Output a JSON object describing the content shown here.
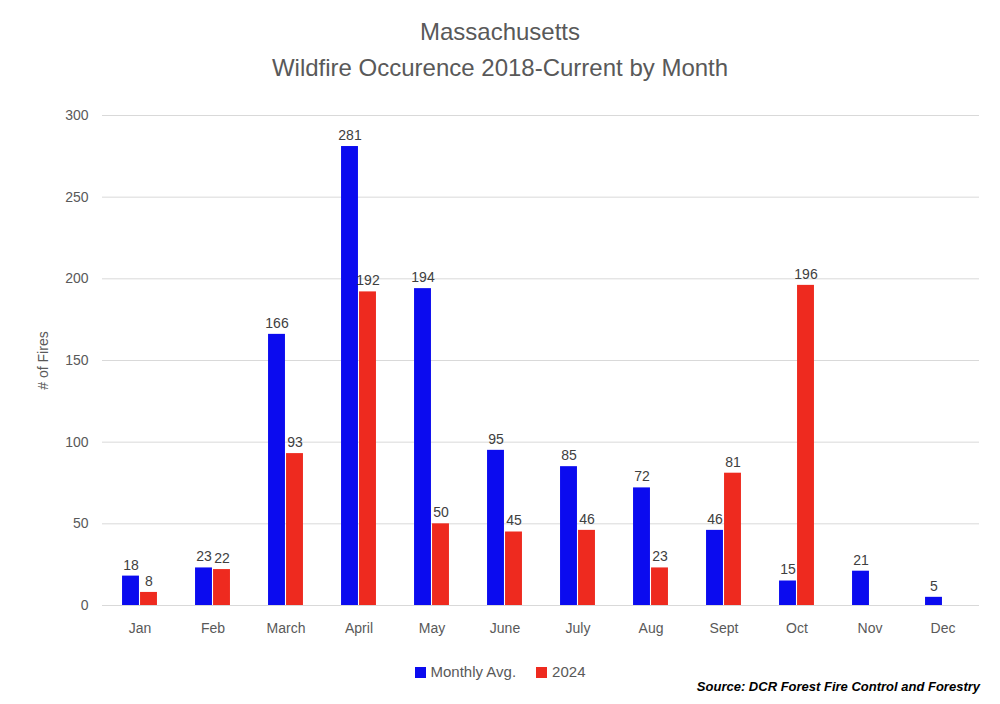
{
  "chart_data": {
    "type": "bar",
    "title": "Massachusetts",
    "subtitle": "Wildfire Occurence 2018-Current by Month",
    "y_label": "# of Fires",
    "caption": "Source:  DCR Forest Fire Control and Forestry",
    "categories": [
      "Jan",
      "Feb",
      "March",
      "April",
      "May",
      "June",
      "July",
      "Aug",
      "Sept",
      "Oct",
      "Nov",
      "Dec"
    ],
    "series": [
      {
        "name": "Monthly Avg.",
        "color": "#0b0bef",
        "values": [
          18,
          23,
          166,
          281,
          194,
          95,
          85,
          72,
          46,
          15,
          21,
          5
        ]
      },
      {
        "name": "2024",
        "color": "#ee2a1f",
        "values": [
          8,
          22,
          93,
          192,
          50,
          45,
          46,
          23,
          81,
          196,
          null,
          null
        ]
      }
    ],
    "ylim": [
      0,
      300
    ],
    "yticks": [
      0,
      50,
      100,
      150,
      200,
      250,
      300
    ],
    "grid": true,
    "data_labels": true,
    "legend": "bottom"
  }
}
